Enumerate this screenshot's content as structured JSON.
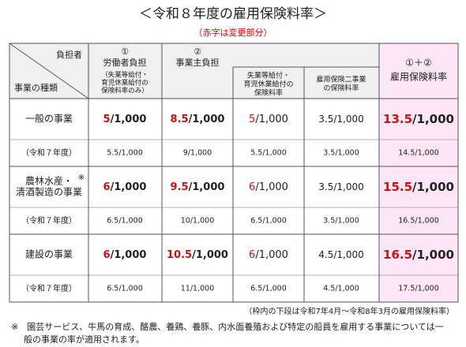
{
  "title": "＜令和８年度の雇用保険料率＞",
  "subtitle": "（赤字は変更部分）",
  "header": {
    "burden_label": "負担者",
    "type_label": "事業の種類",
    "worker": {
      "number": "①",
      "label": "労働者負担",
      "note": [
        "（失業等給付・",
        "育児休業給付の",
        "保険料率のみ）"
      ]
    },
    "employer": {
      "number": "②",
      "label": "事業主負担"
    },
    "unemployment": [
      "失業等給付・",
      "育児休業給付の",
      "保険料率"
    ],
    "two_projects": [
      "雇用保険二事業",
      "の保険料率"
    ],
    "total": {
      "number": "①＋②",
      "label": "雇用保険料率"
    }
  },
  "groups": [
    {
      "name": [
        "一般の事業"
      ],
      "cells": [
        {
          "red": "5",
          "black": "/1,000"
        },
        {
          "red": "8.5",
          "black": "/1,000"
        },
        {
          "red": "5",
          "black": "/1,000"
        },
        {
          "black": "3.5/1,000"
        },
        {
          "red": "13.5",
          "black": "/1,000"
        }
      ],
      "prev_label": "（令和７年度）",
      "prev": [
        "5.5/1,000",
        "9/1,000",
        "5.5/1,000",
        "3.5/1,000",
        "14.5/1,000"
      ]
    },
    {
      "name": [
        "農林水産・",
        "清酒製造の事業"
      ],
      "mark": "※",
      "cells": [
        {
          "red": "6",
          "black": "/1,000"
        },
        {
          "red": "9.5",
          "black": "/1,000"
        },
        {
          "red": "6",
          "black": "/1,000"
        },
        {
          "black": "3.5/1,000"
        },
        {
          "red": "15.5",
          "black": "/1,000"
        }
      ],
      "prev_label": "（令和７年度）",
      "prev": [
        "6.5/1,000",
        "10/1,000",
        "6.5/1,000",
        "3.5/1,000",
        "16.5/1,000"
      ]
    },
    {
      "name": [
        "建設の事業"
      ],
      "cells": [
        {
          "red": "6",
          "black": "/1,000"
        },
        {
          "red": "10.5",
          "black": "/1,000"
        },
        {
          "red": "6",
          "black": "/1,000"
        },
        {
          "black": "4.5/1,000"
        },
        {
          "red": "16.5",
          "black": "/1,000"
        }
      ],
      "prev_label": "（令和７年度）",
      "prev": [
        "6.5/1,000",
        "11/1,000",
        "6.5/1,000",
        "4.5/1,000",
        "17.5/1,000"
      ]
    }
  ],
  "footnote_range": "（枠内の下段は令和7年4月～令和8年3月の雇用保険料率）",
  "footnote": [
    "※　園芸サービス、牛馬の育成、酪農、養鶏、養豚、内水面養殖および特定の船員を雇用する事業については一",
    "般の事業の率が適用されます。"
  ]
}
